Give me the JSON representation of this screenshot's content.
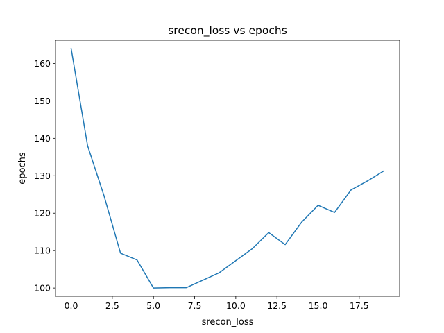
{
  "chart_data": {
    "type": "line",
    "title": "srecon_loss vs epochs",
    "xlabel": "srecon_loss",
    "ylabel": "epochs",
    "xlim": [
      -0.95,
      19.95
    ],
    "ylim": [
      97.8,
      166.2
    ],
    "xticks": [
      0.0,
      2.5,
      5.0,
      7.5,
      10.0,
      12.5,
      15.0,
      17.5
    ],
    "xtick_labels": [
      "0.0",
      "2.5",
      "5.0",
      "7.5",
      "10.0",
      "12.5",
      "15.0",
      "17.5"
    ],
    "yticks": [
      100,
      110,
      120,
      130,
      140,
      150,
      160
    ],
    "ytick_labels": [
      "100",
      "110",
      "120",
      "130",
      "140",
      "150",
      "160"
    ],
    "grid": false,
    "series": [
      {
        "color": "#1f77b4",
        "x": [
          0,
          1,
          2,
          3,
          4,
          5,
          6,
          7,
          8,
          9,
          10,
          11,
          12,
          13,
          14,
          15,
          16,
          17,
          18,
          19
        ],
        "values": [
          164.0,
          138.0,
          124.6,
          109.3,
          107.5,
          100.0,
          100.1,
          100.1,
          102.1,
          104.1,
          107.3,
          110.5,
          114.8,
          111.6,
          117.6,
          122.1,
          120.2,
          126.2,
          128.6,
          131.3
        ]
      }
    ]
  }
}
